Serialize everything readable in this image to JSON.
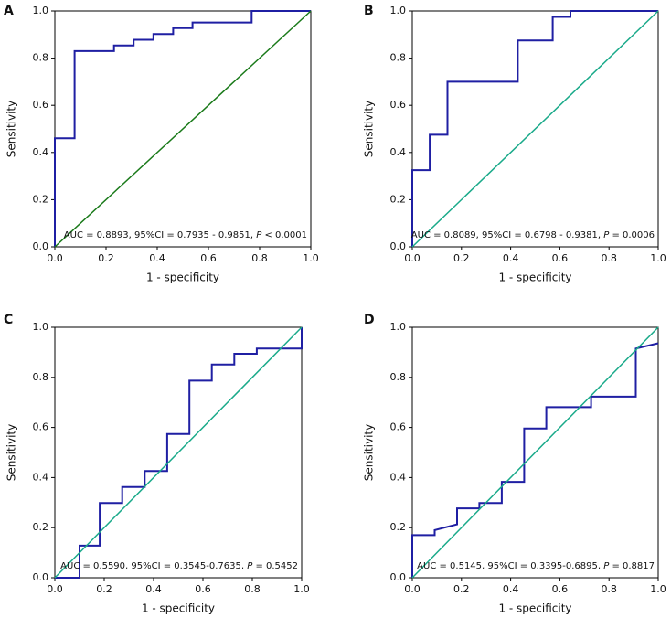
{
  "chart_data": [
    {
      "type": "line",
      "panel": "A",
      "xlabel": "1 - specificity",
      "ylabel": "Sensitivity",
      "annotation": [
        "AUC = 0.8893, 95%CI = 0.7935 - 0.9851, ",
        "P",
        " < 0.0001"
      ],
      "xlim": [
        0,
        1
      ],
      "ylim": [
        0,
        1
      ],
      "xticks": [
        {
          "value": 0,
          "label": "0.0"
        },
        0.2,
        0.4,
        0.6,
        0.8,
        {
          "value": 1,
          "label": "1.0"
        }
      ],
      "yticks": [
        {
          "value": 0,
          "label": "0.0"
        },
        0.2,
        0.4,
        0.6,
        0.8,
        {
          "value": 1,
          "label": "1.0"
        }
      ],
      "series": [
        {
          "color": "#1f1fa3",
          "x": [
            0,
            0,
            0.077,
            0.077,
            0.231,
            0.231,
            0.308,
            0.308,
            0.385,
            0.385,
            0.462,
            0.462,
            0.538,
            0.538,
            0.769,
            0.769,
            1
          ],
          "values": [
            0,
            0.46,
            0.46,
            0.83,
            0.83,
            0.854,
            0.854,
            0.878,
            0.878,
            0.902,
            0.902,
            0.927,
            0.927,
            0.951,
            0.951,
            1,
            1
          ]
        },
        {
          "color": "#1a7a1a",
          "x": [
            0,
            1
          ],
          "values": [
            0,
            1
          ]
        }
      ]
    },
    {
      "type": "line",
      "panel": "B",
      "xlabel": "1 - specificity",
      "ylabel": "Sensitivity",
      "annotation": [
        "AUC = 0.8089, 95%CI = 0.6798 - 0.9381, ",
        "P",
        " = 0.0006"
      ],
      "xlim": [
        0,
        1
      ],
      "ylim": [
        0,
        1
      ],
      "xticks": [
        {
          "value": 0,
          "label": "0.0"
        },
        0.2,
        0.4,
        0.6,
        0.8,
        {
          "value": 1,
          "label": "1.0"
        }
      ],
      "yticks": [
        {
          "value": 0,
          "label": "0.0"
        },
        0.2,
        0.4,
        0.6,
        0.8,
        {
          "value": 1,
          "label": "1.0"
        }
      ],
      "series": [
        {
          "color": "#1f1fa3",
          "x": [
            0,
            0,
            0.071,
            0.071,
            0.143,
            0.143,
            0.429,
            0.429,
            0.571,
            0.571,
            0.643,
            0.643,
            1
          ],
          "values": [
            0,
            0.325,
            0.325,
            0.475,
            0.475,
            0.7,
            0.7,
            0.875,
            0.875,
            0.975,
            0.975,
            1,
            1
          ]
        },
        {
          "color": "#1aaa8a",
          "x": [
            0,
            1
          ],
          "values": [
            0,
            1
          ]
        }
      ]
    },
    {
      "type": "line",
      "panel": "C",
      "xlabel": "1 - specificity",
      "ylabel": "Sensitivity",
      "annotation": [
        "AUC = 0.5590, 95%CI = 0.3545-0.7635, ",
        "P",
        " = 0.5452"
      ],
      "xlim": [
        0,
        1
      ],
      "ylim": [
        0,
        1
      ],
      "xticks": [
        {
          "value": 0,
          "label": "0.0"
        },
        0.2,
        0.4,
        0.6,
        0.8,
        {
          "value": 1,
          "label": "1.0"
        }
      ],
      "yticks": [
        {
          "value": 0,
          "label": "0.0"
        },
        0.2,
        0.4,
        0.6,
        0.8,
        {
          "value": 1,
          "label": "1.0"
        }
      ],
      "series": [
        {
          "color": "#1f1fa3",
          "x": [
            0,
            0.1,
            0.1,
            0.182,
            0.182,
            0.273,
            0.273,
            0.364,
            0.364,
            0.455,
            0.455,
            0.545,
            0.545,
            0.636,
            0.636,
            0.727,
            0.727,
            0.818,
            0.818,
            1,
            1
          ],
          "values": [
            0,
            0,
            0.128,
            0.128,
            0.298,
            0.298,
            0.362,
            0.362,
            0.426,
            0.426,
            0.574,
            0.574,
            0.787,
            0.787,
            0.851,
            0.851,
            0.894,
            0.894,
            0.915,
            0.915,
            1
          ]
        },
        {
          "color": "#1aaa8a",
          "x": [
            0,
            1
          ],
          "values": [
            0,
            1
          ]
        }
      ]
    },
    {
      "type": "line",
      "panel": "D",
      "xlabel": "1 - specificity",
      "ylabel": "Sensitivity",
      "annotation": [
        "AUC = 0.5145, 95%CI = 0.3395-0.6895, ",
        "P",
        " = 0.8817"
      ],
      "xlim": [
        0,
        1
      ],
      "ylim": [
        0,
        1
      ],
      "xticks": [
        {
          "value": 0,
          "label": "0.0"
        },
        0.2,
        0.4,
        0.6,
        0.8,
        {
          "value": 1,
          "label": "1.0"
        }
      ],
      "yticks": [
        {
          "value": 0,
          "label": "0.0"
        },
        0.2,
        0.4,
        0.6,
        0.8,
        {
          "value": 1,
          "label": "1.0"
        }
      ],
      "series": [
        {
          "color": "#1f1fa3",
          "x": [
            0,
            0,
            0.091,
            0.091,
            0.182,
            0.182,
            0.273,
            0.273,
            0.364,
            0.364,
            0.455,
            0.455,
            0.545,
            0.545,
            0.727,
            0.727,
            0.909,
            0.909,
            1
          ],
          "values": [
            0,
            0.17,
            0.17,
            0.19,
            0.213,
            0.277,
            0.277,
            0.298,
            0.298,
            0.383,
            0.383,
            0.596,
            0.596,
            0.681,
            0.681,
            0.723,
            0.723,
            0.915,
            0.936
          ]
        },
        {
          "color": "#1aaa8a",
          "x": [
            0,
            1
          ],
          "values": [
            0,
            1
          ]
        }
      ]
    }
  ]
}
